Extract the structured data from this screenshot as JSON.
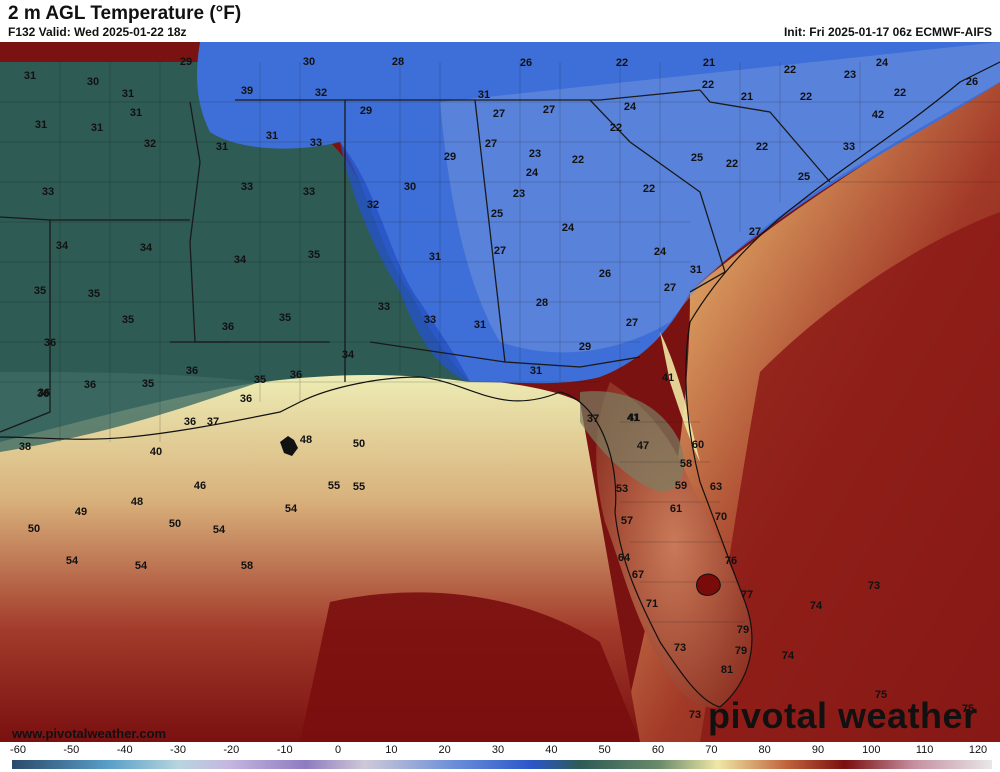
{
  "header": {
    "title": "2 m AGL Temperature (°F)",
    "valid": "F132 Valid: Wed 2025-01-22 18z",
    "init": "Init: Fri 2025-01-17 06z ECMWF-AIFS"
  },
  "footer": {
    "website": "www.pivotalweather.com",
    "brand": "pivotal weather"
  },
  "legend": {
    "ticks": [
      "-60",
      "-50",
      "-40",
      "-30",
      "-20",
      "-10",
      "0",
      "10",
      "20",
      "30",
      "40",
      "50",
      "60",
      "70",
      "80",
      "90",
      "100",
      "110",
      "120"
    ],
    "colors": {
      "cold": "#3f6bd6",
      "cool": "#2f5d58",
      "mild": "#f2eea5",
      "warm": "#b34a32",
      "hot": "#7a0b0b",
      "ocean_far": "#6e1010"
    }
  },
  "map": {
    "temperature_labels": [
      {
        "v": "29"
      },
      {
        "v": "30"
      },
      {
        "v": "28"
      },
      {
        "v": "26"
      },
      {
        "v": "22"
      },
      {
        "v": "21"
      },
      {
        "v": "22"
      },
      {
        "v": "23"
      },
      {
        "v": "24"
      },
      {
        "v": "31"
      },
      {
        "v": "30"
      },
      {
        "v": "31"
      },
      {
        "v": "39"
      },
      {
        "v": "32"
      },
      {
        "v": "31"
      },
      {
        "v": "31"
      },
      {
        "v": "31"
      },
      {
        "v": "29"
      },
      {
        "v": "27"
      },
      {
        "v": "27"
      },
      {
        "v": "24"
      },
      {
        "v": "22"
      },
      {
        "v": "21"
      },
      {
        "v": "22"
      },
      {
        "v": "22"
      },
      {
        "v": "26"
      },
      {
        "v": "42"
      },
      {
        "v": "31"
      },
      {
        "v": "32"
      },
      {
        "v": "31"
      },
      {
        "v": "27"
      },
      {
        "v": "23"
      },
      {
        "v": "22"
      },
      {
        "v": "22"
      },
      {
        "v": "25"
      },
      {
        "v": "33"
      },
      {
        "v": "31"
      },
      {
        "v": "33"
      },
      {
        "v": "30"
      },
      {
        "v": "29"
      },
      {
        "v": "24"
      },
      {
        "v": "22"
      },
      {
        "v": "22"
      },
      {
        "v": "25"
      },
      {
        "v": "33"
      },
      {
        "v": "33"
      },
      {
        "v": "32"
      },
      {
        "v": "23"
      },
      {
        "v": "22"
      },
      {
        "v": "34"
      },
      {
        "v": "33"
      },
      {
        "v": "34"
      },
      {
        "v": "31"
      },
      {
        "v": "25"
      },
      {
        "v": "24"
      },
      {
        "v": "27"
      },
      {
        "v": "34"
      },
      {
        "v": "27"
      },
      {
        "v": "24"
      },
      {
        "v": "35"
      },
      {
        "v": "35"
      },
      {
        "v": "35"
      },
      {
        "v": "26"
      },
      {
        "v": "31"
      },
      {
        "v": "35"
      },
      {
        "v": "36"
      },
      {
        "v": "35"
      },
      {
        "v": "33"
      },
      {
        "v": "33"
      },
      {
        "v": "28"
      },
      {
        "v": "27"
      },
      {
        "v": "36"
      },
      {
        "v": "31"
      },
      {
        "v": "27"
      },
      {
        "v": "36"
      },
      {
        "v": "34"
      },
      {
        "v": "29"
      },
      {
        "v": "36"
      },
      {
        "v": "35"
      },
      {
        "v": "36"
      },
      {
        "v": "35"
      },
      {
        "v": "36"
      },
      {
        "v": "31"
      },
      {
        "v": "41"
      },
      {
        "v": "36"
      },
      {
        "v": "36"
      },
      {
        "v": "36"
      },
      {
        "v": "37"
      },
      {
        "v": "37"
      },
      {
        "v": "41"
      },
      {
        "v": "55"
      },
      {
        "v": "38"
      },
      {
        "v": "40"
      },
      {
        "v": "48"
      },
      {
        "v": "50"
      },
      {
        "v": "47"
      },
      {
        "v": "60"
      },
      {
        "v": "41"
      },
      {
        "v": "58"
      },
      {
        "v": "46"
      },
      {
        "v": "55"
      },
      {
        "v": "53"
      },
      {
        "v": "59"
      },
      {
        "v": "63"
      },
      {
        "v": "48"
      },
      {
        "v": "49"
      },
      {
        "v": "54"
      },
      {
        "v": "61"
      },
      {
        "v": "70"
      },
      {
        "v": "50"
      },
      {
        "v": "50"
      },
      {
        "v": "54"
      },
      {
        "v": "57"
      },
      {
        "v": "54"
      },
      {
        "v": "54"
      },
      {
        "v": "58"
      },
      {
        "v": "64"
      },
      {
        "v": "76"
      },
      {
        "v": "67"
      },
      {
        "v": "73"
      },
      {
        "v": "71"
      },
      {
        "v": "77"
      },
      {
        "v": "74"
      },
      {
        "v": "79"
      },
      {
        "v": "73"
      },
      {
        "v": "79"
      },
      {
        "v": "74"
      },
      {
        "v": "81"
      },
      {
        "v": "75"
      },
      {
        "v": "73"
      },
      {
        "v": "75"
      }
    ]
  }
}
